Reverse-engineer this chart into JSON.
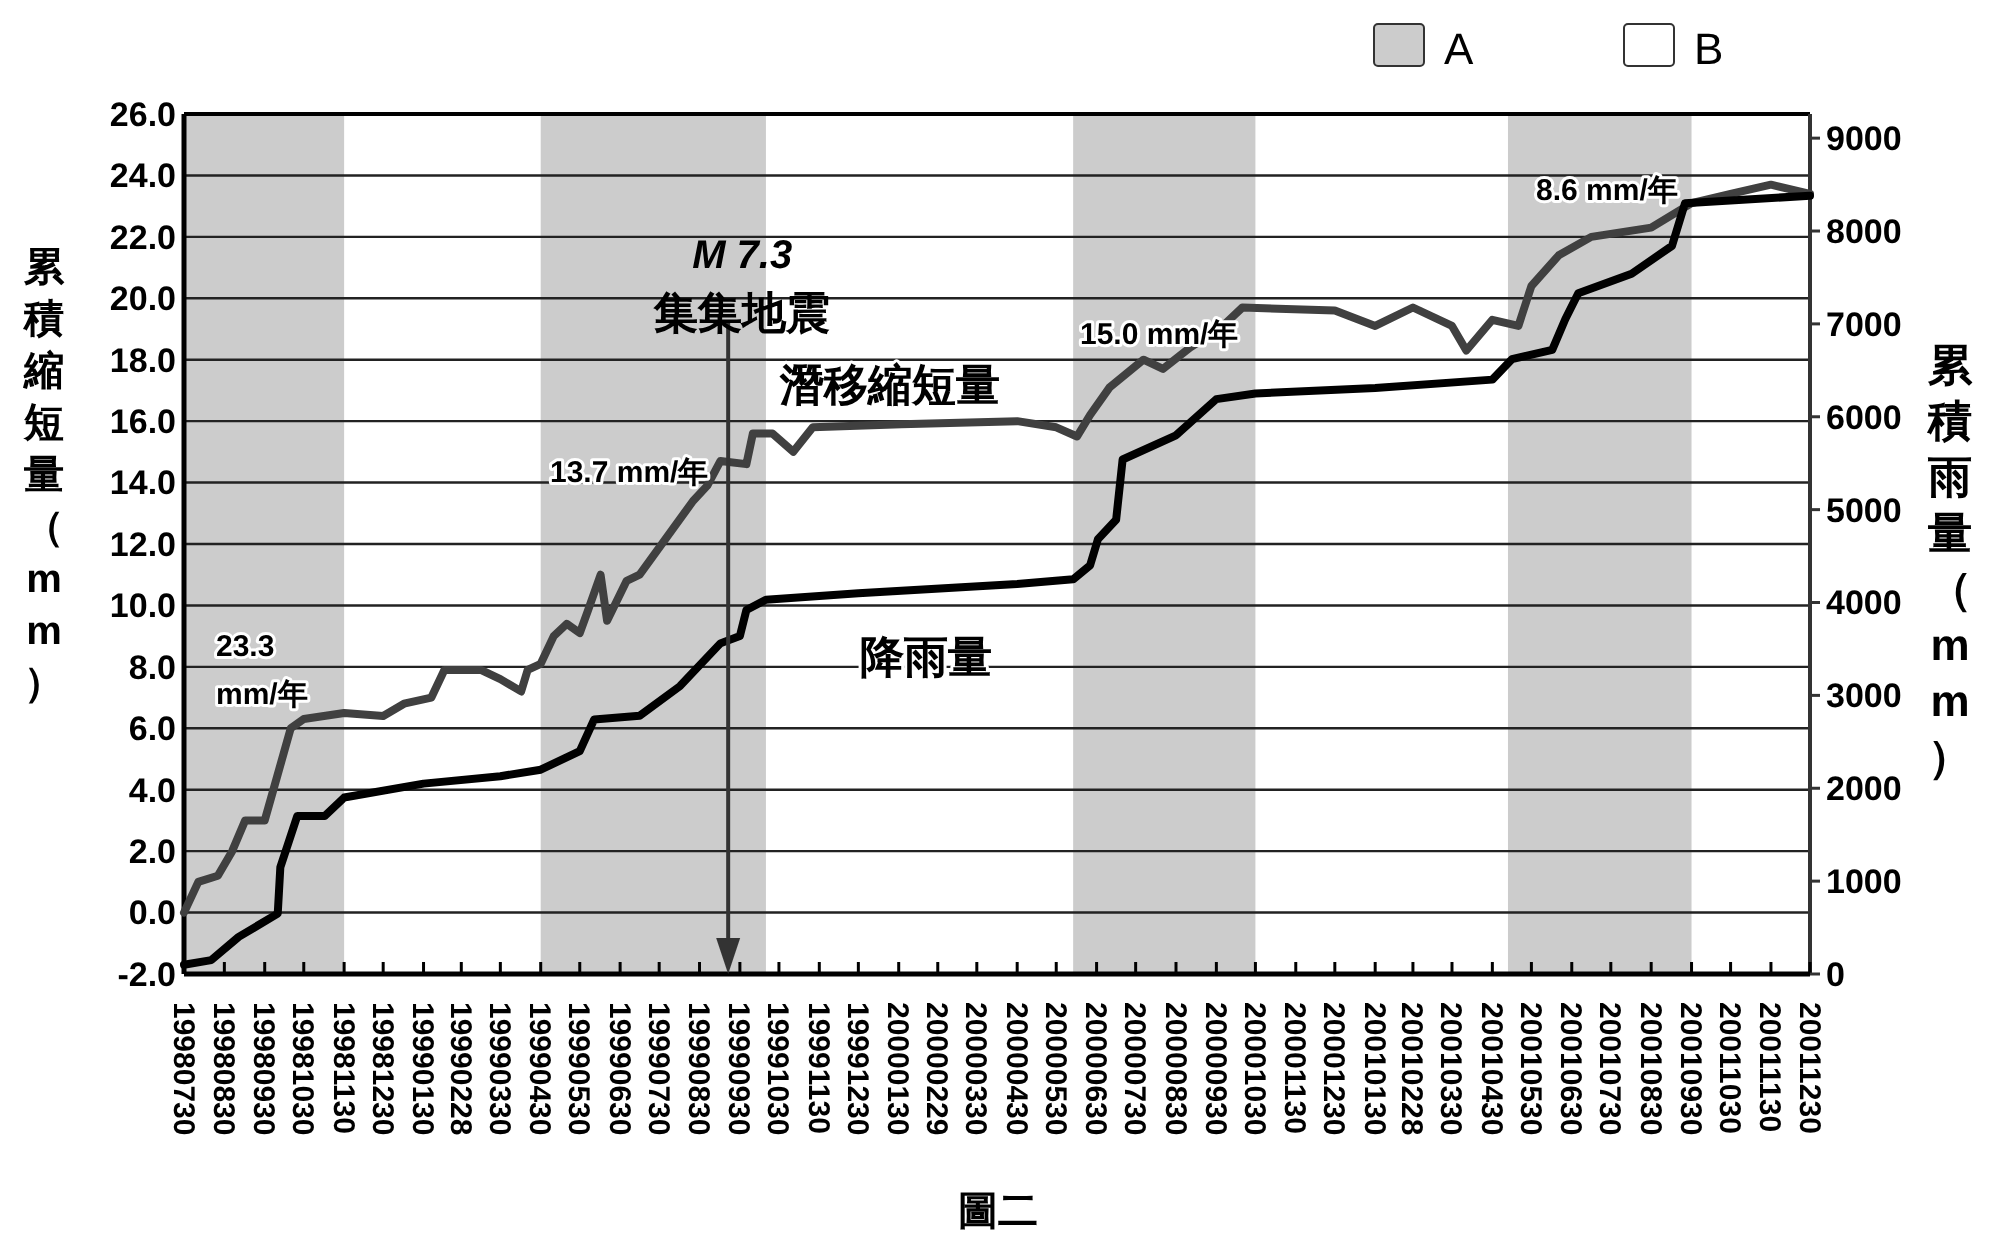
{
  "chart_data": {
    "type": "line",
    "ylabel": "累積縮短量（mm）",
    "y2label": "累積雨量（mm）",
    "xlim": [
      "1998-07-30",
      "2001-12-30"
    ],
    "xticks": [
      {
        "value": "1998-07-30",
        "label": "19980730"
      },
      {
        "value": "1998-08-30",
        "label": "19980830"
      },
      {
        "value": "1998-09-30",
        "label": "19980930"
      },
      {
        "value": "1998-10-30",
        "label": "19981030"
      },
      {
        "value": "1998-11-30",
        "label": "19981130"
      },
      {
        "value": "1998-12-30",
        "label": "19981230"
      },
      {
        "value": "1999-01-30",
        "label": "19990130"
      },
      {
        "value": "1999-02-28",
        "label": "19990228"
      },
      {
        "value": "1999-03-30",
        "label": "19990330"
      },
      {
        "value": "1999-04-30",
        "label": "19990430"
      },
      {
        "value": "1999-05-30",
        "label": "19990530"
      },
      {
        "value": "1999-06-30",
        "label": "19990630"
      },
      {
        "value": "1999-07-30",
        "label": "19990730"
      },
      {
        "value": "1999-08-30",
        "label": "19990830"
      },
      {
        "value": "1999-09-30",
        "label": "19990930"
      },
      {
        "value": "1999-10-30",
        "label": "19991030"
      },
      {
        "value": "1999-11-30",
        "label": "19991130"
      },
      {
        "value": "1999-12-30",
        "label": "19991230"
      },
      {
        "value": "2000-01-30",
        "label": "20000130"
      },
      {
        "value": "2000-02-29",
        "label": "20000229"
      },
      {
        "value": "2000-03-30",
        "label": "20000330"
      },
      {
        "value": "2000-04-30",
        "label": "20000430"
      },
      {
        "value": "2000-05-30",
        "label": "20000530"
      },
      {
        "value": "2000-06-30",
        "label": "20000630"
      },
      {
        "value": "2000-07-30",
        "label": "20000730"
      },
      {
        "value": "2000-08-30",
        "label": "20000830"
      },
      {
        "value": "2000-09-30",
        "label": "20000930"
      },
      {
        "value": "2000-10-30",
        "label": "20001030"
      },
      {
        "value": "2000-11-30",
        "label": "20001130"
      },
      {
        "value": "2000-12-30",
        "label": "20001230"
      },
      {
        "value": "2001-01-30",
        "label": "20010130"
      },
      {
        "value": "2001-02-28",
        "label": "20010228"
      },
      {
        "value": "2001-03-30",
        "label": "20010330"
      },
      {
        "value": "2001-04-30",
        "label": "20010430"
      },
      {
        "value": "2001-05-30",
        "label": "20010530"
      },
      {
        "value": "2001-06-30",
        "label": "20010630"
      },
      {
        "value": "2001-07-30",
        "label": "20010730"
      },
      {
        "value": "2001-08-30",
        "label": "20010830"
      },
      {
        "value": "2001-09-30",
        "label": "20010930"
      },
      {
        "value": "2001-10-30",
        "label": "20011030"
      },
      {
        "value": "2001-11-30",
        "label": "20011130"
      },
      {
        "value": "2001-12-30",
        "label": "20011230"
      }
    ],
    "ylim": [
      -2,
      26
    ],
    "yticks": [
      {
        "value": -2,
        "label": "-2.0"
      },
      {
        "value": 0,
        "label": "0.0"
      },
      {
        "value": 2,
        "label": "2.0"
      },
      {
        "value": 4,
        "label": "4.0"
      },
      {
        "value": 6,
        "label": "6.0"
      },
      {
        "value": 8,
        "label": "8.0"
      },
      {
        "value": 10,
        "label": "10.0"
      },
      {
        "value": 12,
        "label": "12.0"
      },
      {
        "value": 14,
        "label": "14.0"
      },
      {
        "value": 16,
        "label": "16.0"
      },
      {
        "value": 18,
        "label": "18.0"
      },
      {
        "value": 20,
        "label": "20.0"
      },
      {
        "value": 22,
        "label": "22.0"
      },
      {
        "value": 24,
        "label": "24.0"
      },
      {
        "value": 26,
        "label": "26.0"
      }
    ],
    "y2lim": [
      0,
      9260
    ],
    "y2ticks": [
      0,
      1000,
      2000,
      3000,
      4000,
      5000,
      6000,
      7000,
      8000,
      9000
    ],
    "grid": "y",
    "legend": "top right",
    "line_style": "solid",
    "marker": "none",
    "series": [
      {
        "color": "#404040",
        "x": [
          "1998-07-30",
          "1998-08-10",
          "1998-08-25",
          "1998-09-05",
          "1998-09-15",
          "1998-09-30",
          "1998-10-10",
          "1998-10-20",
          "1998-10-30",
          "1998-11-30",
          "1998-12-30",
          "1999-01-15",
          "1999-02-05",
          "1999-02-15",
          "1999-03-15",
          "1999-03-30",
          "1999-04-15",
          "1999-04-20",
          "1999-04-30",
          "1999-05-10",
          "1999-05-20",
          "1999-05-30",
          "1999-06-05",
          "1999-06-15",
          "1999-06-20",
          "1999-07-05",
          "1999-07-15",
          "1999-08-25",
          "1999-09-05",
          "1999-09-15",
          "1999-10-05",
          "1999-10-10",
          "1999-10-25",
          "1999-11-10",
          "1999-11-25",
          "2000-02-01",
          "2000-04-30",
          "2000-05-30",
          "2000-06-15",
          "2000-06-25",
          "2000-07-10",
          "2000-08-05",
          "2000-08-20",
          "2000-09-10",
          "2000-10-05",
          "2000-10-20",
          "2000-12-30",
          "2001-01-30",
          "2001-02-28",
          "2001-03-30",
          "2001-04-10",
          "2001-04-30",
          "2001-05-20",
          "2001-05-30",
          "2001-06-20",
          "2001-07-15",
          "2001-08-30",
          "2001-09-30",
          "2001-10-30",
          "2001-11-30",
          "2001-12-30"
        ],
        "values": [
          0.0,
          1.0,
          1.2,
          2.0,
          3.0,
          3.0,
          4.5,
          6.0,
          6.3,
          6.5,
          6.4,
          6.8,
          7.0,
          7.9,
          7.9,
          7.6,
          7.2,
          7.9,
          8.1,
          9.0,
          9.4,
          9.1,
          9.8,
          11.0,
          9.5,
          10.8,
          11.0,
          13.4,
          13.9,
          14.7,
          14.6,
          15.6,
          15.6,
          15.0,
          15.8,
          15.9,
          16.0,
          15.8,
          15.5,
          16.2,
          17.1,
          18.0,
          17.7,
          18.4,
          19.1,
          19.7,
          19.6,
          19.1,
          19.7,
          19.1,
          18.3,
          19.3,
          19.1,
          20.4,
          21.4,
          22.0,
          22.3,
          23.1,
          23.4,
          23.7,
          23.4
        ]
      },
      {
        "color": "#000000",
        "axis": "y2",
        "x": [
          "1998-07-30",
          "1998-08-20",
          "1998-09-10",
          "1998-10-10",
          "1998-10-12",
          "1998-10-25",
          "1998-11-15",
          "1998-11-30",
          "1999-01-30",
          "1999-03-30",
          "1999-04-30",
          "1999-05-30",
          "1999-06-10",
          "1999-07-15",
          "1999-08-15",
          "1999-09-15",
          "1999-09-30",
          "1999-10-05",
          "1999-10-20",
          "1999-12-30",
          "2000-04-30",
          "2000-06-12",
          "2000-06-25",
          "2000-07-01",
          "2000-07-15",
          "2000-07-20",
          "2000-08-30",
          "2000-09-30",
          "2000-10-30",
          "2001-01-30",
          "2001-04-30",
          "2001-05-15",
          "2001-06-15",
          "2001-06-25",
          "2001-07-05",
          "2001-08-15",
          "2001-09-15",
          "2001-09-25",
          "2001-12-30"
        ],
        "values": [
          100,
          150,
          400,
          650,
          1150,
          1700,
          1700,
          1900,
          2050,
          2130,
          2200,
          2400,
          2740,
          2780,
          3100,
          3560,
          3640,
          3920,
          4030,
          4100,
          4200,
          4250,
          4400,
          4680,
          4890,
          5540,
          5800,
          6190,
          6250,
          6310,
          6400,
          6620,
          6720,
          7050,
          7330,
          7540,
          7840,
          8300,
          8380
        ]
      }
    ],
    "bands": [
      {
        "axis": "x",
        "from": "1998-07-30",
        "to": "1998-11-30",
        "label": "A",
        "color": "#cccccc"
      },
      {
        "axis": "x",
        "from": "1999-04-30",
        "to": "1999-10-20",
        "color": "#cccccc"
      },
      {
        "axis": "x",
        "from": "2000-06-12",
        "to": "2000-10-30",
        "color": "#cccccc"
      },
      {
        "axis": "x",
        "from": "2001-05-12",
        "to": "2001-09-30",
        "color": "#cccccc"
      }
    ],
    "ref_lines": [
      {
        "axis": "x",
        "value": "1999-09-21",
        "label": "M 7.3\n集集地震",
        "color": "#333333"
      }
    ],
    "annotations": [
      "B",
      "23.3\nmm/年",
      "13.7 mm/年",
      "15.0 mm/年",
      "8.6 mm/年",
      "潛移縮短量",
      "降雨量",
      "圖二"
    ]
  }
}
